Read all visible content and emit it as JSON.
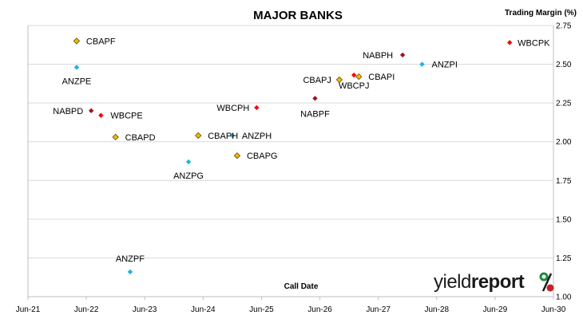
{
  "chart_data": {
    "type": "scatter",
    "title": "MAJOR BANKS",
    "ylabel": "Trading Margin  (%)",
    "xlabel": "Call Date",
    "ylim": [
      1.0,
      2.75
    ],
    "yticks": [
      "1.00",
      "1.25",
      "1.50",
      "1.75",
      "2.00",
      "2.25",
      "2.50",
      "2.75"
    ],
    "ytick_values": [
      1.0,
      1.25,
      1.5,
      1.75,
      2.0,
      2.25,
      2.5,
      2.75
    ],
    "xlim": [
      "2021-06",
      "2030-06"
    ],
    "xticks": [
      "Jun-21",
      "Jun-22",
      "Jun-23",
      "Jun-24",
      "Jun-25",
      "Jun-26",
      "Jun-27",
      "Jun-28",
      "Jun-29",
      "Jun-30"
    ],
    "grid": "horizontal",
    "legend": "none",
    "colors": {
      "CBA": "#f0b800",
      "NAB": "#a0141e",
      "ANZ": "#18b4e8",
      "WBC": "#ff0000"
    },
    "points": [
      {
        "name": "CBAPF",
        "bank": "CBA",
        "x": "2022-04",
        "y": 2.65
      },
      {
        "name": "ANZPE",
        "bank": "ANZ",
        "x": "2022-04",
        "y": 2.48
      },
      {
        "name": "NABPD",
        "bank": "NAB",
        "x": "2022-07",
        "y": 2.2
      },
      {
        "name": "WBCPE",
        "bank": "WBC",
        "x": "2022-09",
        "y": 2.17
      },
      {
        "name": "CBAPD",
        "bank": "CBA",
        "x": "2022-12",
        "y": 2.03
      },
      {
        "name": "ANZPF",
        "bank": "ANZ",
        "x": "2023-03",
        "y": 1.16
      },
      {
        "name": "ANZPG",
        "bank": "ANZ",
        "x": "2024-03",
        "y": 1.87
      },
      {
        "name": "CBAPH",
        "bank": "CBA",
        "x": "2024-05",
        "y": 2.04
      },
      {
        "name": "ANZPH",
        "bank": "ANZ",
        "x": "2024-12",
        "y": 2.04
      },
      {
        "name": "CBAPG",
        "bank": "CBA",
        "x": "2025-01",
        "y": 1.91
      },
      {
        "name": "WBCPH",
        "bank": "WBC",
        "x": "2025-05",
        "y": 2.22
      },
      {
        "name": "NABPF",
        "bank": "NAB",
        "x": "2026-05",
        "y": 2.28
      },
      {
        "name": "CBAPJ",
        "bank": "CBA",
        "x": "2026-10",
        "y": 2.4
      },
      {
        "name": "WBCPJ",
        "bank": "WBC",
        "x": "2027-01",
        "y": 2.43
      },
      {
        "name": "CBAPI",
        "bank": "CBA",
        "x": "2027-02",
        "y": 2.42
      },
      {
        "name": "NABPH",
        "bank": "NAB",
        "x": "2027-11",
        "y": 2.56
      },
      {
        "name": "ANZPI",
        "bank": "ANZ",
        "x": "2028-03",
        "y": 2.5
      },
      {
        "name": "WBCPK",
        "bank": "WBC",
        "x": "2029-09",
        "y": 2.64
      }
    ]
  },
  "logo": {
    "word1": "yield",
    "word2": "report",
    "symbol": "%"
  },
  "logo_colors": {
    "text": "#1a1a1a",
    "green": "#1e8a3c",
    "red": "#c8202a"
  }
}
